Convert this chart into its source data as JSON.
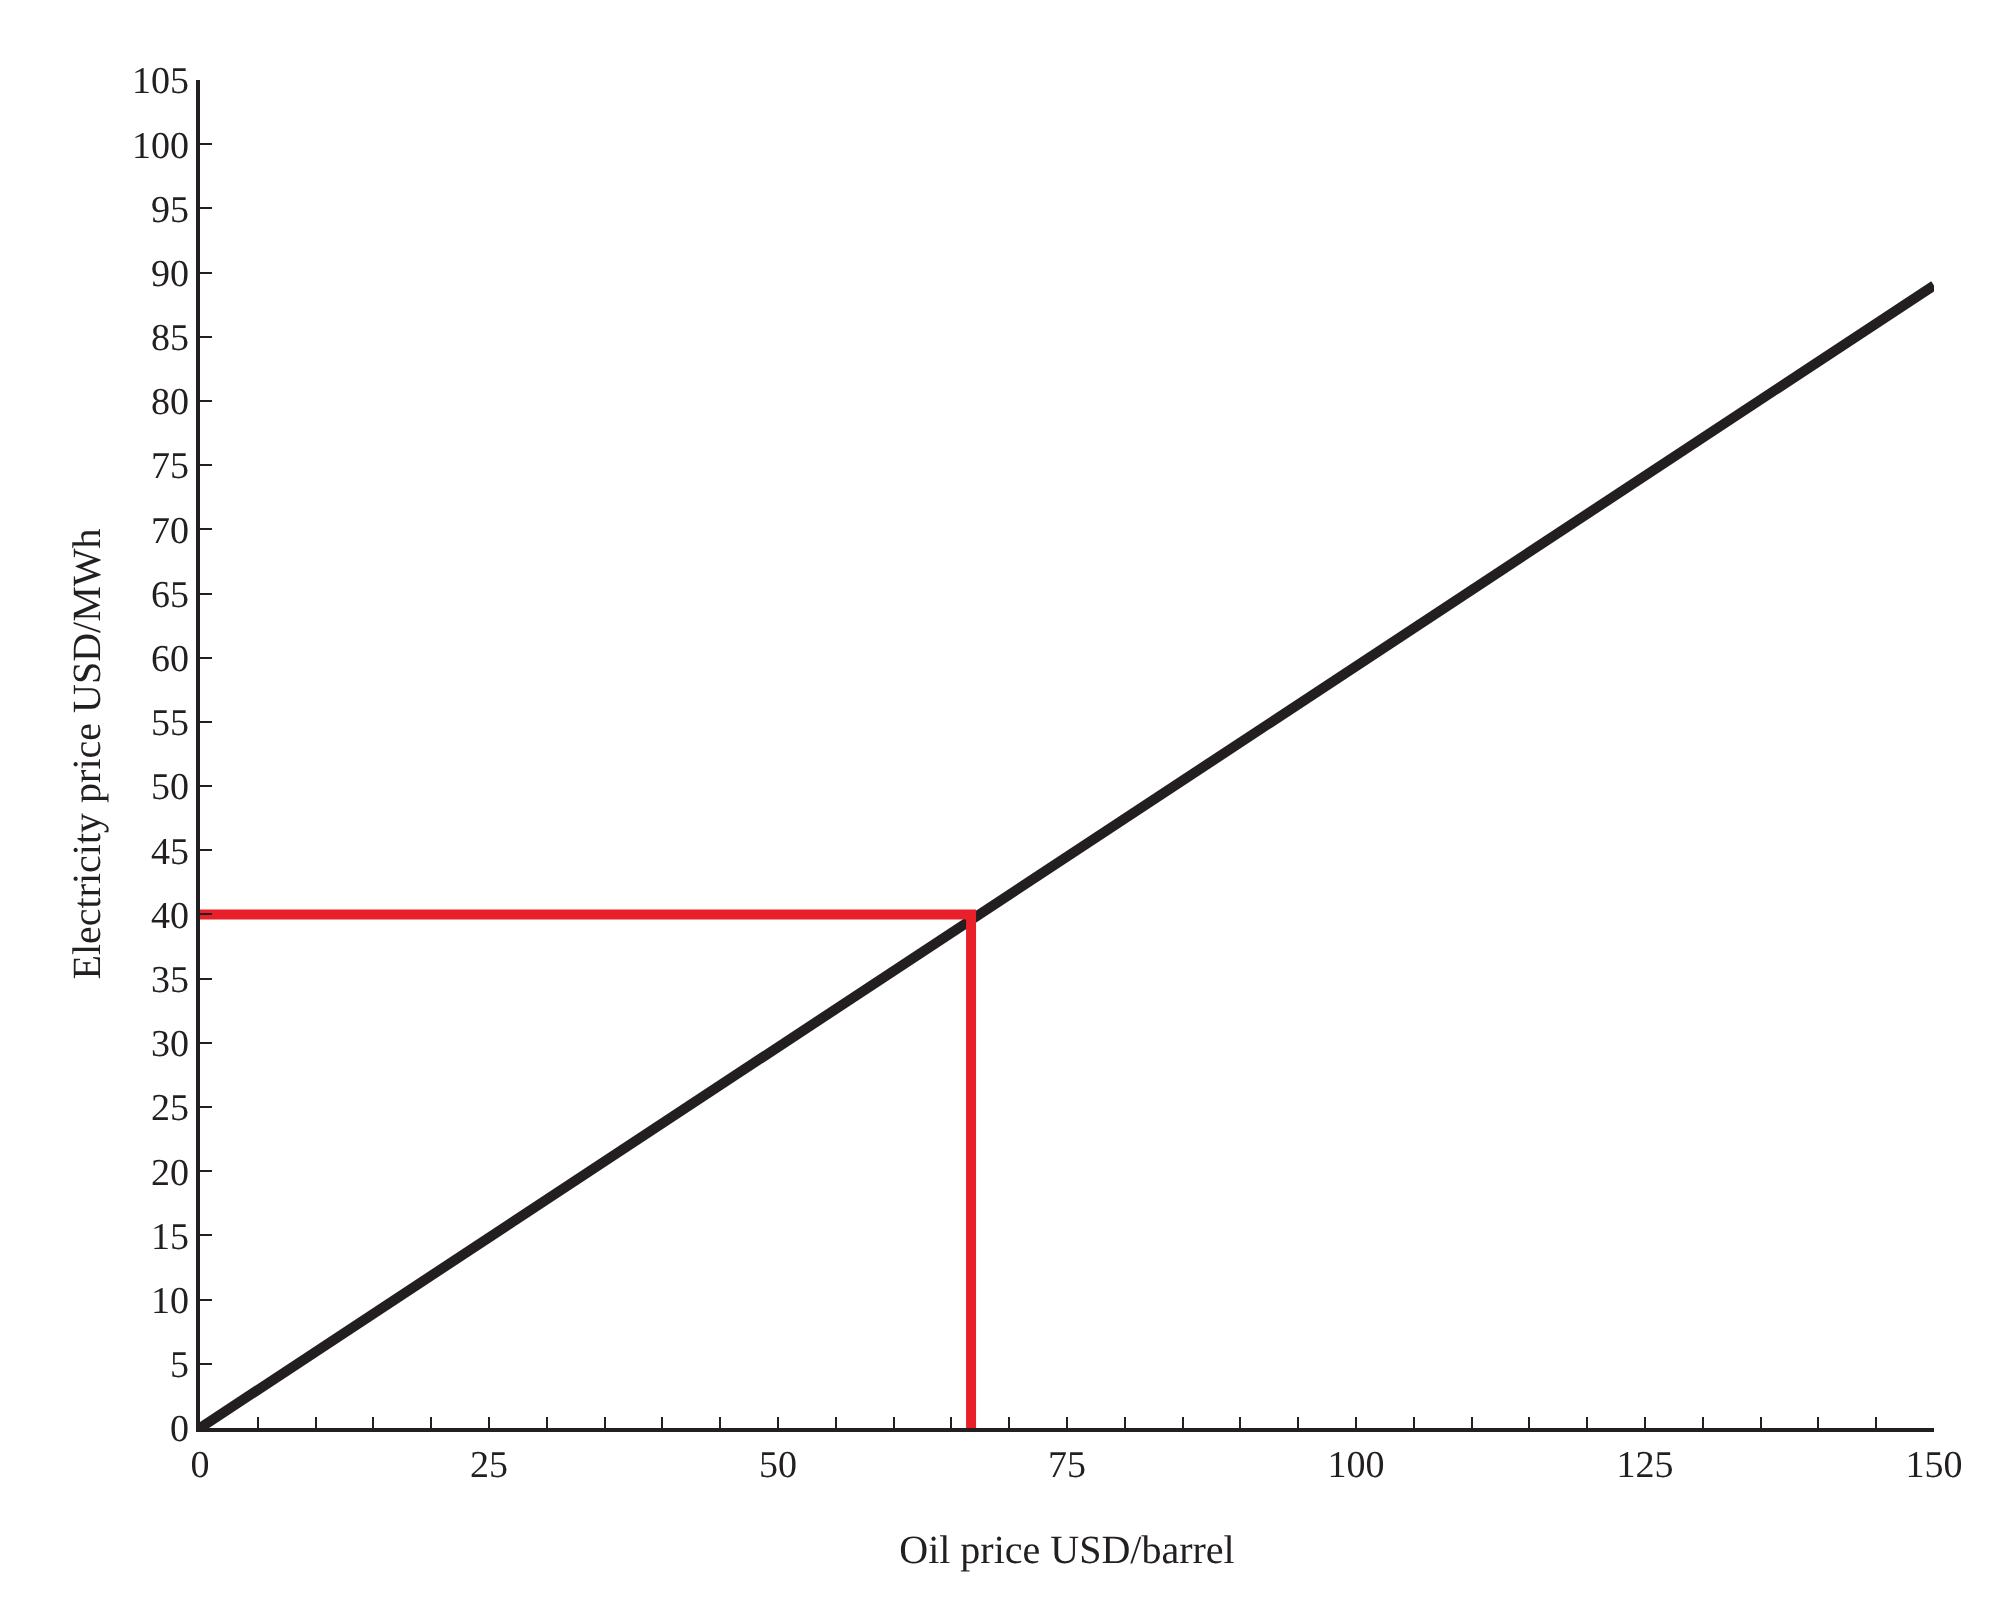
{
  "chart_data": {
    "type": "line",
    "xlabel": "Oil price USD/barrel",
    "ylabel": "Electricity price USD/MWh",
    "series": [
      {
        "x": [
          0,
          150
        ],
        "values": [
          0,
          89
        ],
        "color": "#231f20"
      },
      {
        "x": [
          0,
          66.7,
          66.7
        ],
        "values": [
          40,
          40,
          0
        ],
        "color": "#e8202a"
      }
    ],
    "xlim": [
      0,
      150
    ],
    "ylim": [
      0,
      105
    ],
    "xticks": [
      0,
      {
        "value": 5,
        "label": null
      },
      {
        "value": 10,
        "label": null
      },
      {
        "value": 15,
        "label": null
      },
      {
        "value": 20,
        "label": null
      },
      25,
      {
        "value": 30,
        "label": null
      },
      {
        "value": 35,
        "label": null
      },
      {
        "value": 40,
        "label": null
      },
      {
        "value": 45,
        "label": null
      },
      50,
      {
        "value": 55,
        "label": null
      },
      {
        "value": 60,
        "label": null
      },
      {
        "value": 65,
        "label": null
      },
      {
        "value": 70,
        "label": null
      },
      75,
      {
        "value": 80,
        "label": null
      },
      {
        "value": 85,
        "label": null
      },
      {
        "value": 90,
        "label": null
      },
      {
        "value": 95,
        "label": null
      },
      100,
      {
        "value": 105,
        "label": null
      },
      {
        "value": 110,
        "label": null
      },
      {
        "value": 115,
        "label": null
      },
      {
        "value": 120,
        "label": null
      },
      125,
      {
        "value": 130,
        "label": null
      },
      {
        "value": 135,
        "label": null
      },
      {
        "value": 140,
        "label": null
      },
      {
        "value": 145,
        "label": null
      },
      150
    ],
    "yticks": [
      0,
      5,
      10,
      15,
      20,
      25,
      30,
      35,
      40,
      45,
      50,
      55,
      60,
      65,
      70,
      75,
      80,
      85,
      90,
      95,
      100,
      105
    ],
    "marker": "none",
    "line_style": "solid"
  }
}
